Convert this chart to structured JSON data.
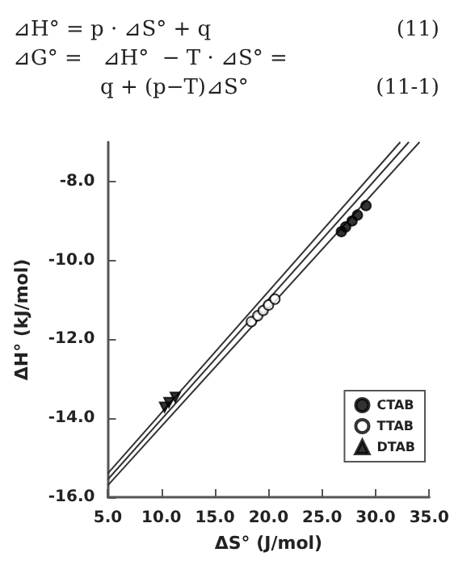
{
  "chart_data": {
    "type": "scatter",
    "xlabel": "ΔS° (J/mol)",
    "ylabel": "ΔH° (kJ/mol)",
    "annotations": [
      "⊿H° = p · ⊿S° + q",
      "(11)",
      "⊿G° =   ⊿H°  − T · ⊿S° =",
      "q + (p−T)⊿S°",
      "(11-1)"
    ],
    "xlim": [
      5,
      35
    ],
    "xticks": [
      {
        "value": 5,
        "label": "5.0"
      },
      {
        "value": 10,
        "label": "10.0"
      },
      {
        "value": 15,
        "label": "15.0"
      },
      {
        "value": 20,
        "label": "20.0"
      },
      {
        "value": 25,
        "label": "25.0"
      },
      {
        "value": 30,
        "label": "30.0"
      },
      {
        "value": 35,
        "label": "35.0"
      }
    ],
    "ylim": [
      -16,
      -7
    ],
    "yticks": [
      {
        "value": -16,
        "label": "-16.0"
      },
      {
        "value": -14,
        "label": "-14.0"
      },
      {
        "value": -12,
        "label": "-12.0"
      },
      {
        "value": -10,
        "label": "-10.0"
      },
      {
        "value": -8,
        "label": "-8.0"
      }
    ],
    "grid": false,
    "legend": "bottom right",
    "series": [
      {
        "name": "CTAB",
        "color": "#000000",
        "marker": "circle",
        "x": [
          26.8,
          27.2,
          27.8,
          28.3,
          29.1
        ],
        "values": [
          -9.27,
          -9.15,
          -9.0,
          -8.85,
          -8.61
        ]
      },
      {
        "name": "TTAB",
        "color": "#ffffff",
        "marker": "circle",
        "x": [
          18.4,
          19.0,
          19.5,
          20.0,
          20.6
        ],
        "values": [
          -11.55,
          -11.4,
          -11.27,
          -11.13,
          -10.98
        ]
      },
      {
        "name": "DTAB",
        "color": "#000000",
        "marker": "triangle",
        "x": [
          10.3,
          10.7,
          11.3
        ],
        "values": [
          -13.72,
          -13.6,
          -13.47
        ]
      },
      {
        "type": "line",
        "color": "#333333",
        "marker": "none",
        "x": [
          5,
          32.3
        ],
        "values": [
          -15.4,
          -7
        ]
      },
      {
        "type": "line",
        "color": "#333333",
        "marker": "none",
        "x": [
          5,
          33.1
        ],
        "values": [
          -15.55,
          -7
        ]
      },
      {
        "type": "line",
        "color": "#333333",
        "marker": "none",
        "x": [
          5,
          34.1
        ],
        "values": [
          -15.7,
          -7
        ]
      }
    ]
  }
}
